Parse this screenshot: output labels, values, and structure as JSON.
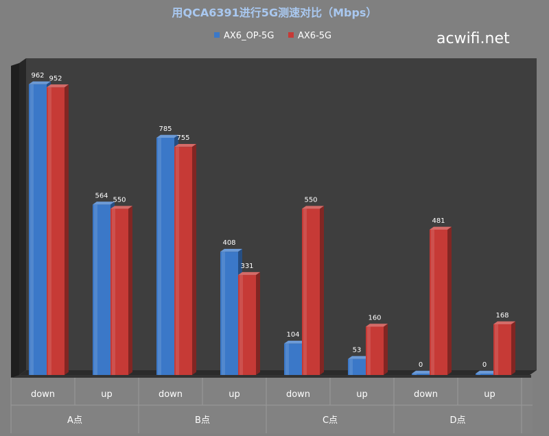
{
  "watermark": "acwifi.net",
  "chart_data": {
    "type": "bar",
    "title": "用QCA6391进行5G测速对比（Mbps）",
    "groups": [
      "A点",
      "B点",
      "C点",
      "D点"
    ],
    "categories": [
      "down",
      "up",
      "down",
      "up",
      "down",
      "up",
      "down",
      "up"
    ],
    "series": [
      {
        "name": "AX6_OP-5G",
        "color": "#3b78c8",
        "values": [
          962,
          564,
          785,
          408,
          104,
          53,
          0,
          0
        ]
      },
      {
        "name": "AX6-5G",
        "color": "#c63a36",
        "values": [
          952,
          550,
          755,
          331,
          550,
          160,
          481,
          168
        ]
      }
    ],
    "ylim": [
      0,
      1000
    ],
    "grid": false,
    "legend_position": "top"
  }
}
